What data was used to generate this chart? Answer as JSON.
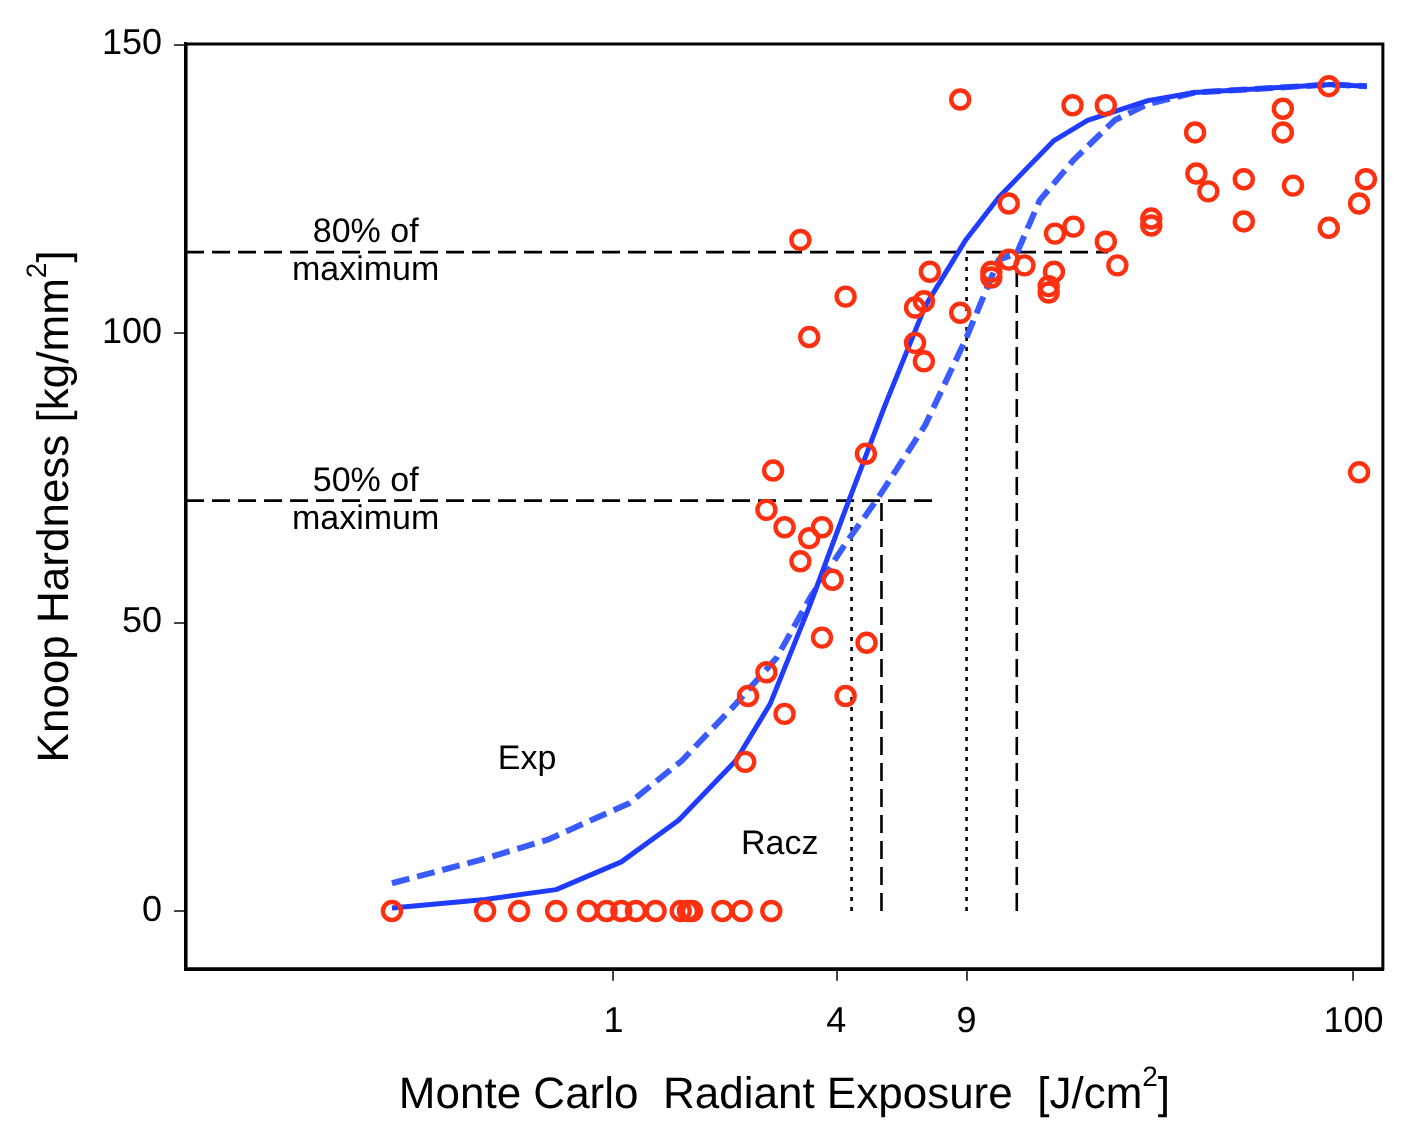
{
  "chart_data": {
    "type": "scatter",
    "xlabel": "Monte Carlo  Radiant Exposure  [J/cm$^{2}$]",
    "ylabel": "Knoop Hardness [kg/mm$^{2}$]",
    "log": "x",
    "xlim": [
      0.07,
      120
    ],
    "ylim": [
      -10,
      150
    ],
    "xticks": [
      1,
      4,
      9,
      100
    ],
    "yticks": [
      0,
      50,
      100,
      150
    ],
    "grid": false,
    "legend": false,
    "series": [
      {
        "marker": "circle",
        "color": "#ff3010",
        "x": [
          0.252,
          0.45,
          0.556,
          0.7,
          0.853,
          0.958,
          1.05,
          1.15,
          1.3,
          1.52,
          1.59,
          1.63,
          1.97,
          2.22,
          2.67,
          2.31,
          2.59,
          2.9,
          2.27,
          3.66,
          4.83,
          4.24,
          3.2,
          4.24,
          3.38,
          7.16,
          6.53,
          6.9,
          6.53,
          6.9,
          8.65,
          10.5,
          10.5,
          11.7,
          12.9,
          15.5,
          15.0,
          15.0,
          15.6,
          17.5,
          11.7,
          4.81,
          2.7,
          2.59,
          2.9,
          3.38,
          3.66,
          3.2,
          3.91,
          8.65,
          17.4,
          21.4,
          37.3,
          37.6,
          40.5,
          50.5,
          50.5,
          64.4,
          64.4,
          68.6,
          85.7,
          85.7,
          103.5,
          108,
          28.4,
          28.4,
          21.4,
          23.0,
          103.5
        ],
        "values": [
          0,
          0,
          0,
          0,
          0,
          0,
          0,
          0,
          0,
          0,
          0,
          0,
          0,
          0,
          0,
          37.2,
          41.3,
          34.1,
          25.8,
          47.3,
          46.4,
          37.2,
          116.1,
          106.3,
          99.3,
          110.6,
          104.4,
          105.5,
          98.3,
          95.1,
          103.5,
          110.6,
          109.6,
          112.7,
          111.7,
          110.6,
          108.1,
          107,
          117.2,
          118.4,
          122.4,
          79.1,
          76.2,
          69.4,
          66.4,
          64.5,
          66.4,
          60.5,
          57.3,
          140.4,
          139.4,
          139.4,
          134.7,
          127.6,
          124.5,
          126.6,
          119.3,
          138.8,
          134.7,
          125.5,
          142.7,
          118.2,
          122.4,
          126.6,
          119.8,
          118.6,
          115.8,
          111.7,
          75.9
        ]
      },
      {
        "type": "line",
        "name": "Racz",
        "marker": "none",
        "line_style": "solid",
        "color": "#1f3cff",
        "x": [
          0.252,
          0.45,
          0.7,
          1.05,
          1.5,
          2.14,
          2.65,
          3.4,
          4.21,
          5.41,
          6.95,
          8.95,
          11.0,
          15.5,
          19.1,
          27.8,
          37.2,
          86.9,
          108.6
        ],
        "values": [
          0.5,
          2.0,
          3.7,
          8.5,
          15.7,
          26,
          35.8,
          53,
          69,
          87.4,
          104.6,
          116.1,
          123.5,
          133.3,
          136.8,
          140.2,
          141.6,
          143,
          142.7
        ]
      },
      {
        "type": "line",
        "name": "Exp",
        "marker": "none",
        "line_style": "dashed",
        "color": "#3a5cff",
        "x": [
          0.252,
          0.435,
          0.662,
          1.1,
          1.53,
          2.14,
          2.76,
          3.4,
          4.21,
          5.18,
          6.95,
          8.95,
          11.0,
          12.3,
          14.2,
          17.5,
          22.6,
          27.8,
          37.2,
          86.9,
          108.6
        ],
        "values": [
          4.8,
          8.8,
          12.3,
          18.6,
          26,
          35.8,
          43.8,
          54.2,
          63.3,
          71.4,
          84,
          98.9,
          112.7,
          113.8,
          123,
          129.9,
          136.8,
          139.6,
          141.6,
          143,
          142.7
        ]
      },
      {
        "type": "line",
        "marker": "none",
        "line_style": "dashed",
        "color": "#000000",
        "x": [
          0.07,
          21.7
        ],
        "values": [
          114,
          114
        ]
      },
      {
        "type": "line",
        "marker": "none",
        "line_style": "dashed",
        "color": "#000000",
        "x": [
          0.07,
          7.5
        ],
        "values": [
          71,
          71
        ]
      },
      {
        "type": "line",
        "marker": "none",
        "line_style": "dotted",
        "color": "#000000",
        "x": [
          4.4,
          4.4
        ],
        "values": [
          0,
          71
        ]
      },
      {
        "type": "line",
        "marker": "none",
        "line_style": "dashed",
        "color": "#000000",
        "x": [
          5.3,
          5.3
        ],
        "values": [
          0,
          71
        ]
      },
      {
        "type": "line",
        "marker": "none",
        "line_style": "dotted",
        "color": "#000000",
        "x": [
          9,
          9
        ],
        "values": [
          0,
          114
        ]
      },
      {
        "type": "line",
        "marker": "none",
        "line_style": "dashed",
        "color": "#000000",
        "x": [
          12.3,
          12.3
        ],
        "values": [
          0,
          114
        ]
      }
    ],
    "annotations": [
      {
        "text": "80% of\nmaximum",
        "x": 0.214,
        "y": 114
      },
      {
        "text": "50% of\nmaximum",
        "x": 0.214,
        "y": 71
      }
    ]
  }
}
